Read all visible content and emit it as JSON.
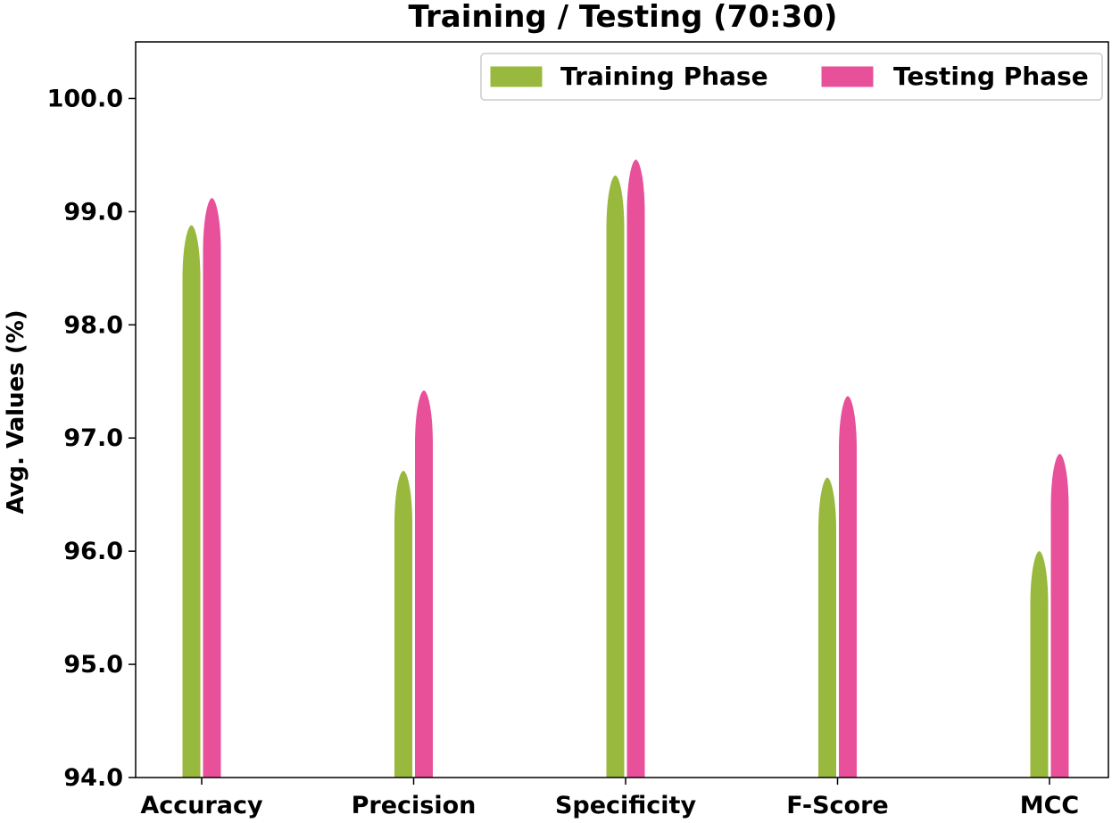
{
  "chart_data": {
    "type": "bar",
    "title": "Training / Testing (70:30)",
    "xlabel": "",
    "ylabel": "Avg. Values (%)",
    "ylim": [
      94.0,
      100.5
    ],
    "yticks": [
      "94.0",
      "95.0",
      "96.0",
      "97.0",
      "98.0",
      "99.0",
      "100.0"
    ],
    "categories": [
      "Accuracy",
      "Precision",
      "Specificity",
      "F-Score",
      "MCC"
    ],
    "series": [
      {
        "name": "Training Phase",
        "color": "#98b83e",
        "values": [
          98.88,
          96.71,
          99.32,
          96.65,
          96.0
        ]
      },
      {
        "name": "Testing Phase",
        "color": "#e8509a",
        "values": [
          99.12,
          97.42,
          99.46,
          97.37,
          96.86
        ]
      }
    ],
    "legend_position": "top-right",
    "grid": false
  }
}
